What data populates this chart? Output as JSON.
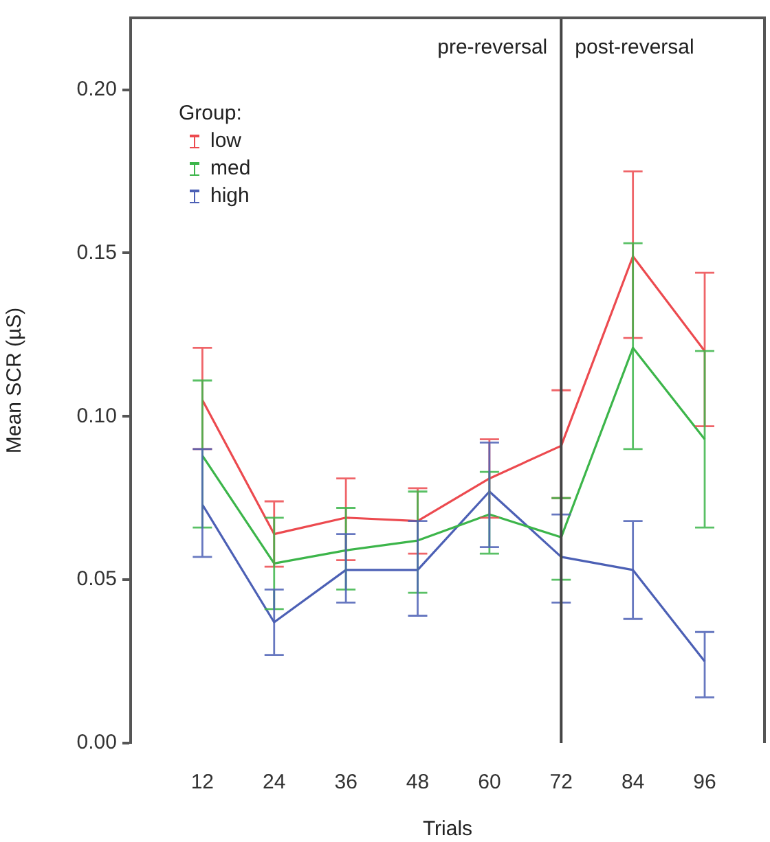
{
  "chart_data": {
    "type": "line",
    "xlabel": "Trials",
    "ylabel": "Mean SCR (µS)",
    "legend_title": "Group:",
    "legend": "top left",
    "grid": false,
    "marker": "none",
    "line_style": "solid",
    "x": [
      12,
      24,
      36,
      48,
      60,
      72,
      84,
      96
    ],
    "xlim": [
      0,
      106
    ],
    "xticks": [
      12,
      24,
      36,
      48,
      60,
      72,
      84,
      96
    ],
    "ylim": [
      0,
      0.222
    ],
    "yticks": [
      {
        "value": 0,
        "label": "0.00"
      },
      {
        "value": 0.05,
        "label": "0.05"
      },
      {
        "value": 0.1,
        "label": "0.10"
      },
      {
        "value": 0.15,
        "label": "0.15"
      },
      {
        "value": 0.2,
        "label": "0.20"
      }
    ],
    "series": [
      {
        "name": "low",
        "color": "#ec4a4f",
        "values": [
          0.105,
          0.064,
          0.069,
          0.068,
          0.081,
          0.091,
          0.149,
          0.12
        ],
        "errors": [
          [
            0.09,
            0.121
          ],
          [
            0.054,
            0.074
          ],
          [
            0.056,
            0.081
          ],
          [
            0.058,
            0.078
          ],
          [
            0.069,
            0.093
          ],
          [
            0.075,
            0.108
          ],
          [
            0.124,
            0.175
          ],
          [
            0.097,
            0.144
          ]
        ]
      },
      {
        "name": "med",
        "color": "#3cb54a",
        "values": [
          0.088,
          0.055,
          0.059,
          0.062,
          0.07,
          0.063,
          0.121,
          0.093
        ],
        "errors": [
          [
            0.066,
            0.111
          ],
          [
            0.041,
            0.069
          ],
          [
            0.047,
            0.072
          ],
          [
            0.046,
            0.077
          ],
          [
            0.058,
            0.083
          ],
          [
            0.05,
            0.075
          ],
          [
            0.09,
            0.153
          ],
          [
            0.066,
            0.12
          ]
        ]
      },
      {
        "name": "high",
        "color": "#4c60b5",
        "values": [
          0.073,
          0.037,
          0.053,
          0.053,
          0.077,
          0.057,
          0.053,
          0.025
        ],
        "errors": [
          [
            0.057,
            0.09
          ],
          [
            0.027,
            0.047
          ],
          [
            0.043,
            0.064
          ],
          [
            0.039,
            0.068
          ],
          [
            0.06,
            0.092
          ],
          [
            0.043,
            0.07
          ],
          [
            0.038,
            0.068
          ],
          [
            0.014,
            0.034
          ]
        ]
      }
    ],
    "ref_lines": [
      {
        "axis": "x",
        "value": 72,
        "color": "#444444"
      }
    ],
    "annotations": [
      "pre-reversal",
      "post-reversal"
    ]
  }
}
